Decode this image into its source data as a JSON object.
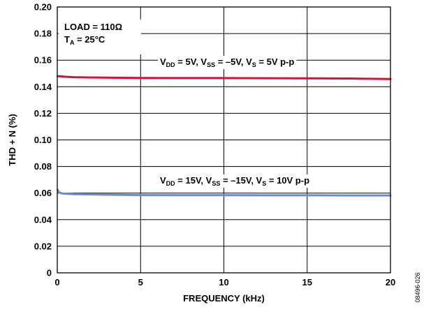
{
  "chart_data": {
    "type": "line",
    "xlabel": "FREQUENCY (kHz)",
    "ylabel": "THD + N (%)",
    "xlim": [
      0,
      20
    ],
    "ylim": [
      0,
      0.2
    ],
    "xticks": [
      0,
      5,
      10,
      15,
      20
    ],
    "xtick_labels": [
      "0",
      "5",
      "10",
      "15",
      "20"
    ],
    "yticks": [
      0,
      0.02,
      0.04,
      0.06,
      0.08,
      0.1,
      0.12,
      0.14,
      0.16,
      0.18,
      0.2
    ],
    "ytick_labels": [
      "0",
      "0.02",
      "0.04",
      "0.06",
      "0.08",
      "0.10",
      "0.12",
      "0.14",
      "0.16",
      "0.18",
      "0.20"
    ],
    "grid": true,
    "conditions": {
      "load": "LOAD = 110Ω",
      "ta_main": "T",
      "ta_sub": "A",
      "ta_rest": " = 25°C"
    },
    "series": [
      {
        "color": "#d2143c",
        "label_parts": {
          "p1": "V",
          "s1": "DD",
          "p2": " = 5V, V",
          "s2": "SS",
          "p3": " = –5V, V",
          "s3": "S",
          "p4": " = 5V p-p"
        },
        "x": [
          0.02,
          0.2,
          0.5,
          1,
          2,
          3,
          5,
          7.5,
          10,
          12.5,
          15,
          17.5,
          20
        ],
        "y": [
          0.148,
          0.1478,
          0.1475,
          0.1472,
          0.147,
          0.1468,
          0.1466,
          0.1465,
          0.1465,
          0.1464,
          0.1463,
          0.1462,
          0.1458
        ]
      },
      {
        "color": "#6e8cc4",
        "label_parts": {
          "p1": "V",
          "s1": "DD",
          "p2": " = 15V, V",
          "s2": "SS",
          "p3": " = –15V, V",
          "s3": "S",
          "p4": " = 10V p-p"
        },
        "x": [
          0.02,
          0.1,
          0.3,
          0.6,
          1,
          2,
          3,
          5,
          7.5,
          10,
          12.5,
          15,
          17.5,
          20
        ],
        "y": [
          0.0625,
          0.0605,
          0.0597,
          0.0594,
          0.0592,
          0.059,
          0.0588,
          0.0585,
          0.0584,
          0.0584,
          0.0583,
          0.0583,
          0.0582,
          0.0582
        ]
      }
    ],
    "figure_id": "08496-026"
  }
}
